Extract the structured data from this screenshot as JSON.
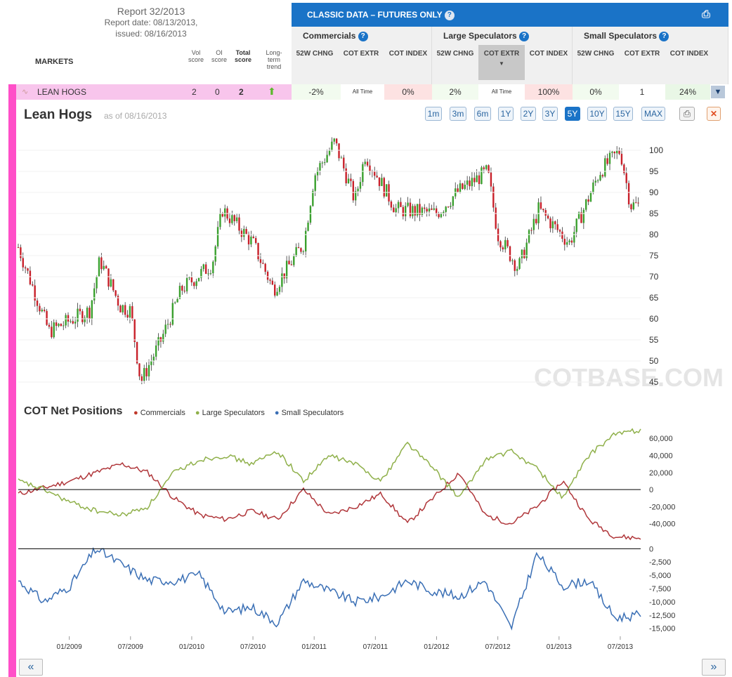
{
  "report": {
    "title": "Report 32/2013",
    "date": "Report date: 08/13/2013,",
    "issued": "issued: 08/16/2013"
  },
  "header": {
    "markets": "MARKETS",
    "vol": "Vol score",
    "oi": "OI score",
    "total": "Total score",
    "trend": "Long-term trend",
    "classic": "CLASSIC DATA – FUTURES ONLY",
    "groups": [
      "Commercials",
      "Large Speculators",
      "Small Speculators"
    ],
    "subcols": [
      "52W CHNG",
      "COT EXTR",
      "COT INDEX"
    ]
  },
  "market_row": {
    "name": "LEAN HOGS",
    "vol": "2",
    "oi": "0",
    "total": "2",
    "cells": [
      "-2%",
      "All Time",
      "0%",
      "2%",
      "All Time",
      "100%",
      "0%",
      "1",
      "24%"
    ]
  },
  "chart_title": "Lean Hogs",
  "as_of": "as of 08/16/2013",
  "ranges": [
    "1m",
    "3m",
    "6m",
    "1Y",
    "2Y",
    "3Y",
    "5Y",
    "10Y",
    "15Y",
    "MAX"
  ],
  "active_range": "5Y",
  "watermark": "COTBASE.COM",
  "cot_title": "COT Net Positions",
  "legend": [
    {
      "name": "Commercials",
      "color": "#c0392b"
    },
    {
      "name": "Large Speculators",
      "color": "#8fb04a"
    },
    {
      "name": "Small Speculators",
      "color": "#3a6fb5"
    }
  ],
  "chart_data": [
    {
      "type": "candlestick",
      "title": "Lean Hogs",
      "y_ticks": [
        45,
        50,
        55,
        60,
        65,
        70,
        75,
        80,
        85,
        90,
        95,
        100
      ],
      "ylim": [
        43,
        104
      ],
      "x_ticks": [
        "01/2009",
        "07/2009",
        "01/2010",
        "07/2010",
        "01/2011",
        "07/2011",
        "01/2012",
        "07/2012",
        "01/2013",
        "07/2013"
      ],
      "series_keypoints": [
        {
          "x": "08/2008",
          "close": 77
        },
        {
          "x": "11/2008",
          "close": 57
        },
        {
          "x": "03/2009",
          "close": 62
        },
        {
          "x": "04/2009",
          "close": 74
        },
        {
          "x": "06/2009",
          "close": 63
        },
        {
          "x": "07/2009",
          "close": 62
        },
        {
          "x": "08/2009",
          "close": 45
        },
        {
          "x": "10/2009",
          "close": 55
        },
        {
          "x": "12/2009",
          "close": 67
        },
        {
          "x": "03/2010",
          "close": 73
        },
        {
          "x": "04/2010",
          "close": 86
        },
        {
          "x": "07/2010",
          "close": 78
        },
        {
          "x": "09/2010",
          "close": 67
        },
        {
          "x": "12/2010",
          "close": 78
        },
        {
          "x": "01/2011",
          "close": 94
        },
        {
          "x": "03/2011",
          "close": 102
        },
        {
          "x": "05/2011",
          "close": 88
        },
        {
          "x": "06/2011",
          "close": 99
        },
        {
          "x": "09/2011",
          "close": 86
        },
        {
          "x": "01/2012",
          "close": 85
        },
        {
          "x": "03/2012",
          "close": 90
        },
        {
          "x": "06/2012",
          "close": 95
        },
        {
          "x": "07/2012",
          "close": 80
        },
        {
          "x": "09/2012",
          "close": 72
        },
        {
          "x": "11/2012",
          "close": 86
        },
        {
          "x": "02/2013",
          "close": 78
        },
        {
          "x": "05/2013",
          "close": 95
        },
        {
          "x": "07/2013",
          "close": 100
        },
        {
          "x": "08/2013",
          "close": 87
        }
      ]
    },
    {
      "type": "line",
      "title": "COT Net Positions",
      "y_ticks": [
        60000,
        40000,
        20000,
        0,
        -20000,
        -40000
      ],
      "ylim": [
        -60000,
        75000
      ],
      "series": [
        {
          "name": "Commercials",
          "values": [
            -5000,
            2000,
            10000,
            20000,
            30000,
            20000,
            -10000,
            -30000,
            -35000,
            -25000,
            -35000,
            0,
            -30000,
            -20000,
            -5000,
            -40000,
            -10000,
            20000,
            -30000,
            -40000,
            -20000,
            10000,
            -35000,
            -55000,
            -57000
          ]
        },
        {
          "name": "Large Speculators",
          "values": [
            10000,
            0,
            -15000,
            -25000,
            -30000,
            -20000,
            20000,
            35000,
            40000,
            30000,
            45000,
            10000,
            40000,
            30000,
            10000,
            55000,
            25000,
            -10000,
            35000,
            45000,
            25000,
            -10000,
            40000,
            65000,
            70000
          ]
        }
      ]
    },
    {
      "type": "line",
      "title": "Small Speculators",
      "y_ticks": [
        0,
        -2500,
        -5000,
        -7500,
        -10000,
        -12500,
        -15000
      ],
      "ylim": [
        -16500,
        1500
      ],
      "series": [
        {
          "name": "Small Speculators",
          "values": [
            -6000,
            -10000,
            -7000,
            0,
            -3000,
            -6000,
            -6000,
            -5000,
            -12000,
            -11000,
            -14000,
            -6000,
            -8000,
            -10000,
            -9000,
            -6000,
            -8000,
            -9000,
            -6000,
            -15000,
            -1000,
            -7000,
            -6000,
            -13000,
            -12500
          ]
        }
      ]
    }
  ]
}
